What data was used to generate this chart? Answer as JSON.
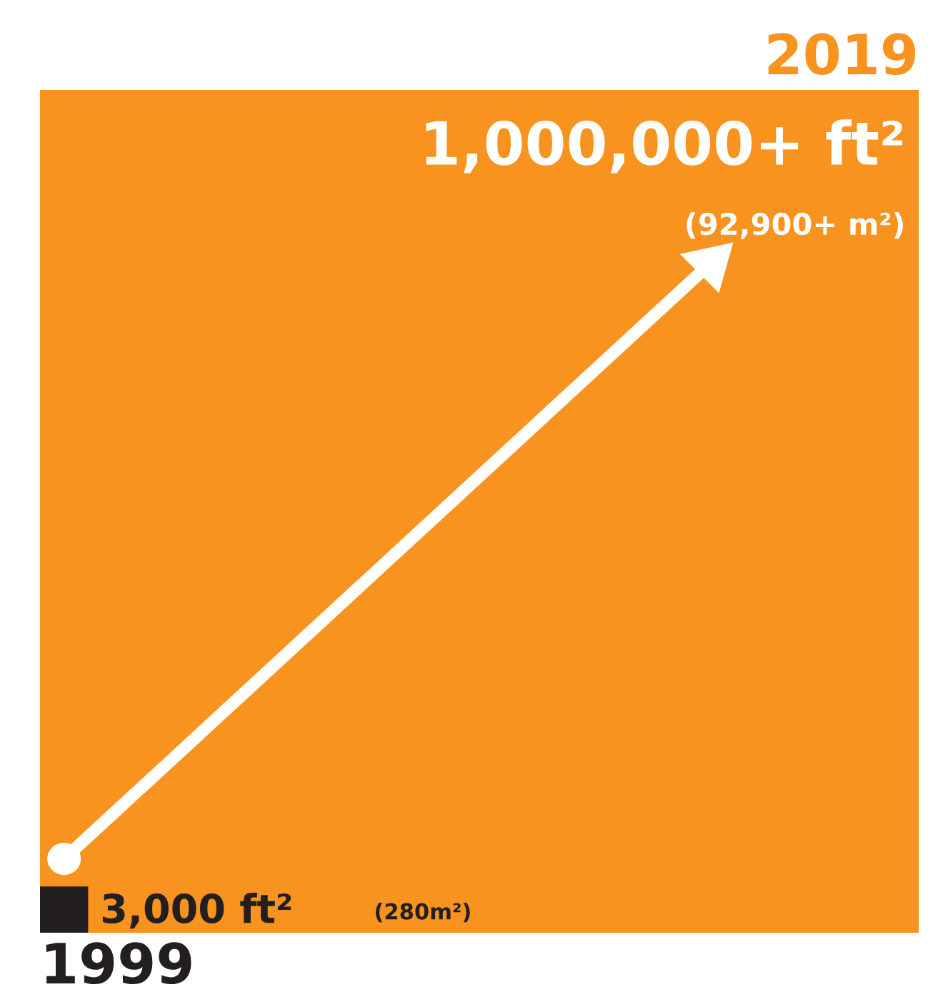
{
  "chart_data": {
    "type": "other",
    "categories": [
      "1999",
      "2019"
    ],
    "values": [
      3000,
      1000000
    ],
    "colors": [
      "#231f20",
      "#f7931e"
    ],
    "value_labels": [
      "3,000 ft²",
      "1,000,000+ ft²"
    ],
    "annotations": [
      "(280m²)",
      "(92,900+ m²)"
    ]
  }
}
